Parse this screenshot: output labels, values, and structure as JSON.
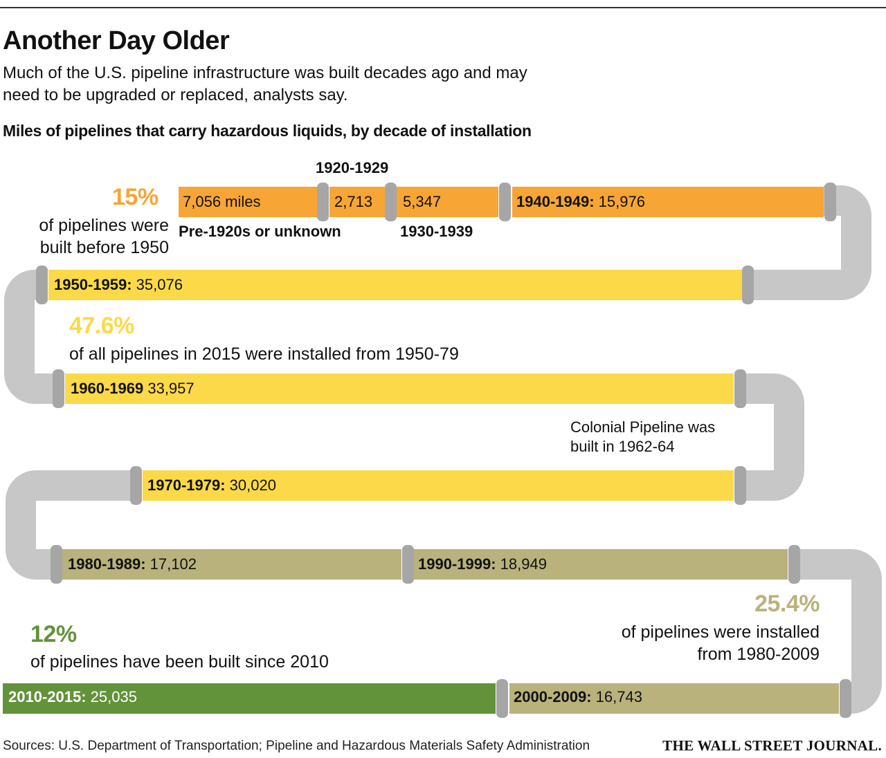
{
  "header": {
    "title": "Another Day Older",
    "subtitle": "Much of the U.S. pipeline infrastructure was built decades ago and may need to be upgraded or replaced, analysts say.",
    "chart_title": "Miles of pipelines that carry hazardous liquids, by decade of installation"
  },
  "segments": [
    {
      "label": "",
      "value": "7,056 miles",
      "color": "#f7a535"
    },
    {
      "label": "",
      "value": "2,713",
      "color": "#f7a535"
    },
    {
      "label": "",
      "value": "5,347",
      "color": "#f7a535"
    },
    {
      "label": "1940-1949:",
      "value": "15,976",
      "color": "#f7a535"
    },
    {
      "label": "1950-1959:",
      "value": "35,076",
      "color": "#fcd948"
    },
    {
      "label": "1960-1969",
      "value": "33,957",
      "color": "#fcd948"
    },
    {
      "label": "1970-1979:",
      "value": "30,020",
      "color": "#fcd948"
    },
    {
      "label": "1980-1989:",
      "value": "17,102",
      "color": "#b9b27c"
    },
    {
      "label": "1990-1999:",
      "value": "18,949",
      "color": "#b9b27c"
    },
    {
      "label": "2000-2009:",
      "value": "16,743",
      "color": "#b9b27c"
    },
    {
      "label": "2010-2015:",
      "value": "25,035",
      "color": "#62923a"
    }
  ],
  "above_labels": {
    "pre1920": "Pre-1920s or unknown",
    "d1920": "1920-1929",
    "d1930": "1930-1939"
  },
  "stats": {
    "s15": {
      "big": "15%",
      "text": "of pipelines were built before 1950",
      "color": "#f7a535"
    },
    "s47": {
      "big": "47.6%",
      "text": "of all pipelines in 2015 were installed from 1950-79",
      "color": "#fcd948"
    },
    "s25": {
      "big": "25.4%",
      "text": "of pipelines were installed from 1980-2009",
      "color": "#b9b27c"
    },
    "s12": {
      "big": "12%",
      "text": "of pipelines have been built since 2010",
      "color": "#62923a"
    }
  },
  "note": "Colonial Pipeline was built in 1962-64",
  "footer": {
    "source": "Sources: U.S. Department of Transportation; Pipeline and Hazardous Materials Safety Administration",
    "credit": "THE WALL STREET JOURNAL."
  },
  "colors": {
    "pipe": "#c7c7c7",
    "joint": "#a6a6a6"
  },
  "chart_data": {
    "type": "bar",
    "title": "Miles of pipelines that carry hazardous liquids, by decade of installation",
    "categories": [
      "Pre-1920s or unknown",
      "1920-1929",
      "1930-1939",
      "1940-1949",
      "1950-1959",
      "1960-1969",
      "1970-1979",
      "1980-1989",
      "1990-1999",
      "2000-2009",
      "2010-2015"
    ],
    "values": [
      7056,
      2713,
      5347,
      15976,
      35076,
      33957,
      30020,
      17102,
      18949,
      16743,
      25035
    ],
    "annotations": [
      "15% of pipelines were built before 1950",
      "47.6% of all pipelines in 2015 were installed from 1950-79",
      "25.4% of pipelines were installed from 1980-2009",
      "12% of pipelines have been built since 2010",
      "Colonial Pipeline was built in 1962-64"
    ]
  }
}
